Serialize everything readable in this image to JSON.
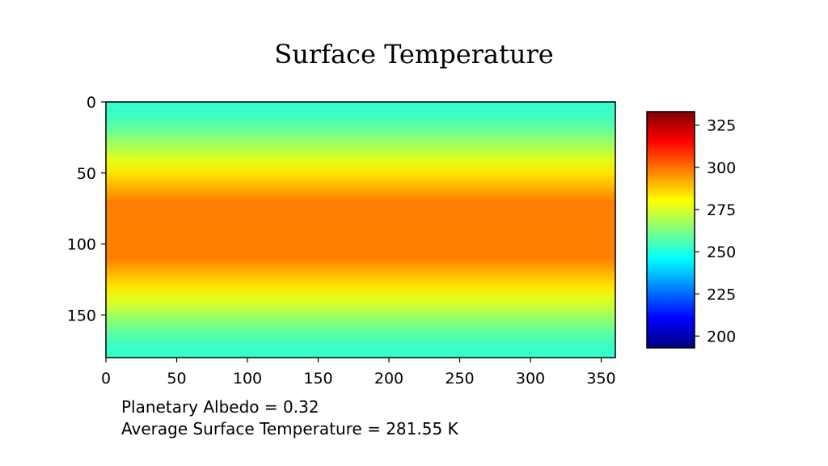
{
  "chart_data": {
    "type": "heatmap",
    "title": "Surface Temperature",
    "xlabel": "",
    "ylabel": "",
    "x_ticks": [
      0,
      50,
      100,
      150,
      200,
      250,
      300,
      350
    ],
    "y_ticks": [
      0,
      50,
      100,
      150
    ],
    "xlim": [
      0,
      360
    ],
    "ylim": [
      180,
      0
    ],
    "grid": false,
    "colormap": "jet",
    "value_range": [
      193,
      333
    ],
    "colorbar_ticks": [
      200,
      225,
      250,
      275,
      300,
      325
    ],
    "latitude_profile": {
      "y": [
        0,
        10,
        20,
        30,
        40,
        50,
        60,
        70,
        80,
        90,
        100,
        110,
        120,
        130,
        140,
        150,
        160,
        170,
        180
      ],
      "temperature": [
        252,
        254,
        260,
        268,
        276,
        284,
        291,
        298,
        298,
        298,
        298,
        298,
        291,
        284,
        276,
        268,
        260,
        254,
        252
      ]
    },
    "annotations": [
      "Planetary Albedo = 0.32",
      "Average Surface Temperature = 281.55 K"
    ]
  }
}
